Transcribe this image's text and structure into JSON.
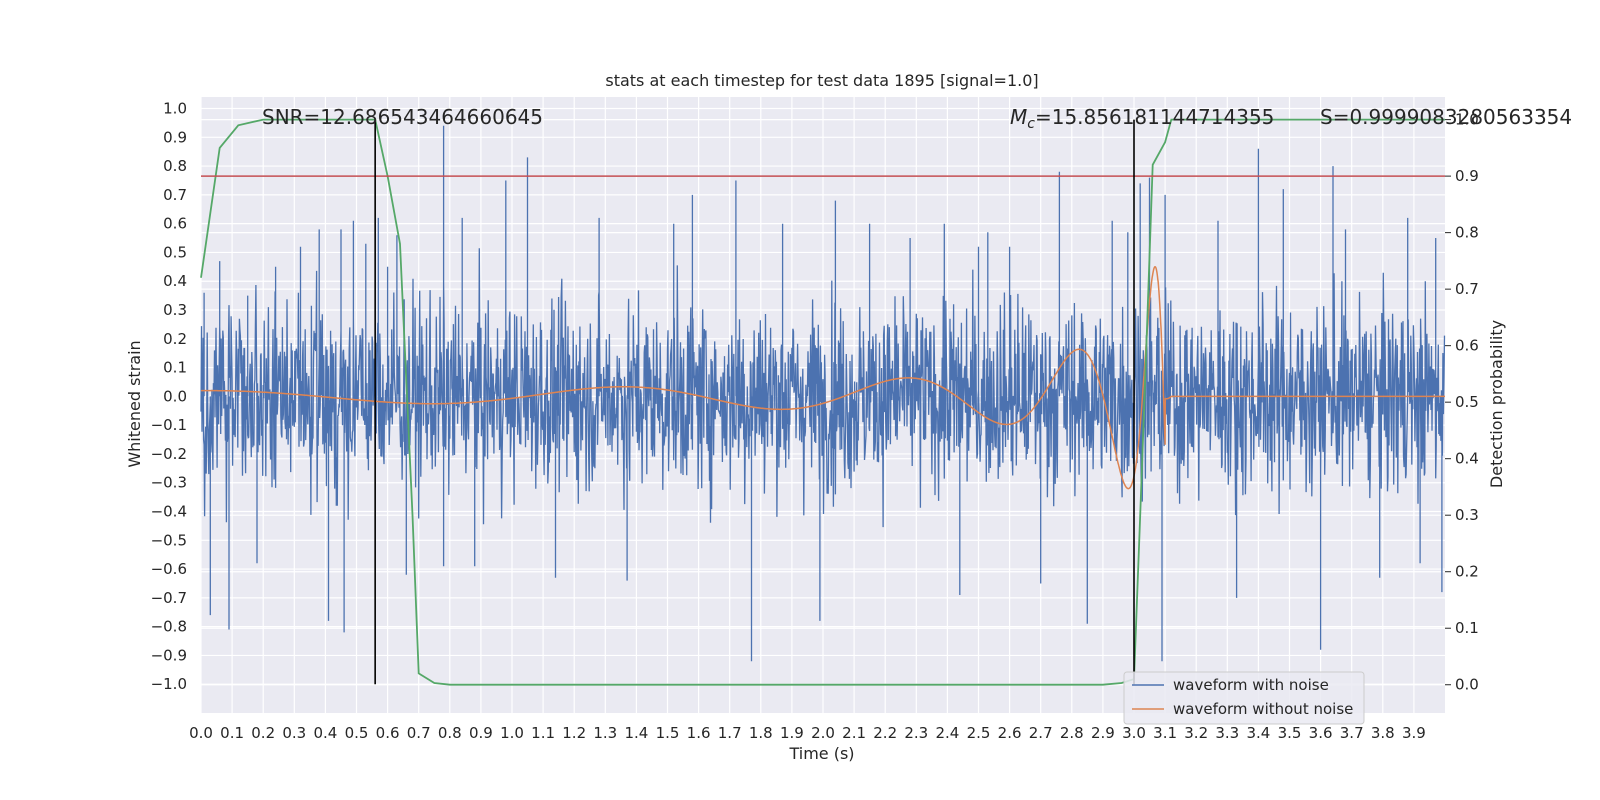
{
  "chart_data": {
    "type": "line",
    "title": "stats at each timestep for test data 1895 [signal=1.0]",
    "xlabel": "Time (s)",
    "ylabel": "Whitened strain",
    "y2label": "Detection probability",
    "xlim": [
      0.0,
      4.0
    ],
    "ylim": [
      -1.1,
      1.04
    ],
    "y2lim": [
      -0.05,
      1.04
    ],
    "xticks": [
      0.0,
      0.1,
      0.2,
      0.3,
      0.4,
      0.5,
      0.6,
      0.7,
      0.8,
      0.9,
      1.0,
      1.1,
      1.2,
      1.3,
      1.4,
      1.5,
      1.6,
      1.7,
      1.8,
      1.9,
      2.0,
      2.1,
      2.2,
      2.3,
      2.4,
      2.5,
      2.6,
      2.7,
      2.8,
      2.9,
      3.0,
      3.1,
      3.2,
      3.3,
      3.4,
      3.5,
      3.6,
      3.7,
      3.8,
      3.9
    ],
    "xtick_labels": [
      "0.0",
      "0.1",
      "0.2",
      "0.3",
      "0.4",
      "0.5",
      "0.6",
      "0.7",
      "0.8",
      "0.9",
      "1.0",
      "1.1",
      "1.2",
      "1.3",
      "1.4",
      "1.5",
      "1.6",
      "1.7",
      "1.8",
      "1.9",
      "2.0",
      "2.1",
      "2.2",
      "2.3",
      "2.4",
      "2.5",
      "2.6",
      "2.7",
      "2.8",
      "2.9",
      "3.0",
      "3.1",
      "3.2",
      "3.3",
      "3.4",
      "3.5",
      "3.6",
      "3.7",
      "3.8",
      "3.9"
    ],
    "yticks": [
      1.0,
      0.9,
      0.8,
      0.7,
      0.6,
      0.5,
      0.4,
      0.3,
      0.2,
      0.1,
      0.0,
      -0.1,
      -0.2,
      -0.3,
      -0.4,
      -0.5,
      -0.6,
      -0.7,
      -0.8,
      -0.9,
      -1.0
    ],
    "ytick_labels": [
      "1.0",
      "0.9",
      "0.8",
      "0.7",
      "0.6",
      "0.5",
      "0.4",
      "0.3",
      "0.2",
      "0.1",
      "0.0",
      "−0.1",
      "−0.2",
      "−0.3",
      "−0.4",
      "−0.5",
      "−0.6",
      "−0.7",
      "−0.8",
      "−0.9",
      "−1.0"
    ],
    "y2ticks": [
      0.0,
      0.1,
      0.2,
      0.3,
      0.4,
      0.5,
      0.6,
      0.7,
      0.8,
      0.9,
      1.0
    ],
    "y2tick_labels": [
      "0.0",
      "0.1",
      "0.2",
      "0.3",
      "0.4",
      "0.5",
      "0.6",
      "0.7",
      "0.8",
      "0.9",
      "1.0"
    ],
    "grid": true,
    "legend_position": "bottom-right",
    "annotations": {
      "snr": "SNR=12.686543464660645",
      "mc": "=15.856181144714355",
      "mc_symbol": "M",
      "mc_sub": "c",
      "s": "S=0.9999083280563354"
    },
    "vlines": [
      0.56,
      3.0
    ],
    "threshold": 0.9,
    "series": [
      {
        "name": "waveform with noise",
        "color": "#4c72b0",
        "noise_sigma": 0.16,
        "spikes": [
          [
            0.01,
            0.36
          ],
          [
            0.03,
            -0.76
          ],
          [
            0.06,
            0.47
          ],
          [
            0.09,
            -0.81
          ],
          [
            0.15,
            0.35
          ],
          [
            0.18,
            -0.58
          ],
          [
            0.24,
            0.45
          ],
          [
            0.32,
            0.52
          ],
          [
            0.38,
            0.58
          ],
          [
            0.41,
            -0.78
          ],
          [
            0.45,
            0.58
          ],
          [
            0.46,
            -0.82
          ],
          [
            0.49,
            0.61
          ],
          [
            0.53,
            0.53
          ],
          [
            0.57,
            0.62
          ],
          [
            0.6,
            0.45
          ],
          [
            0.63,
            0.56
          ],
          [
            0.66,
            -0.62
          ],
          [
            0.78,
            0.94
          ],
          [
            0.78,
            -0.59
          ],
          [
            0.84,
            0.62
          ],
          [
            0.88,
            -0.59
          ],
          [
            0.98,
            0.75
          ],
          [
            1.05,
            0.83
          ],
          [
            1.14,
            -0.63
          ],
          [
            1.28,
            0.62
          ],
          [
            1.37,
            -0.64
          ],
          [
            1.52,
            0.6
          ],
          [
            1.58,
            0.7
          ],
          [
            1.72,
            0.75
          ],
          [
            1.77,
            -0.92
          ],
          [
            1.87,
            0.6
          ],
          [
            1.99,
            -0.78
          ],
          [
            2.04,
            0.68
          ],
          [
            2.15,
            0.6
          ],
          [
            2.28,
            0.55
          ],
          [
            2.39,
            0.6
          ],
          [
            2.44,
            -0.69
          ],
          [
            2.5,
            0.52
          ],
          [
            2.53,
            0.57
          ],
          [
            2.6,
            0.52
          ],
          [
            2.7,
            -0.65
          ],
          [
            2.76,
            0.78
          ],
          [
            2.85,
            -0.79
          ],
          [
            2.93,
            0.61
          ],
          [
            2.98,
            0.57
          ],
          [
            3.02,
            0.74
          ],
          [
            3.05,
            0.76
          ],
          [
            3.09,
            -0.92
          ],
          [
            3.1,
            0.7
          ],
          [
            3.27,
            0.61
          ],
          [
            3.33,
            -0.7
          ],
          [
            3.4,
            0.86
          ],
          [
            3.48,
            0.72
          ],
          [
            3.6,
            -0.88
          ],
          [
            3.64,
            0.8
          ],
          [
            3.68,
            0.58
          ],
          [
            3.79,
            -0.63
          ],
          [
            3.88,
            0.62
          ],
          [
            3.92,
            -0.58
          ],
          [
            3.97,
            0.55
          ],
          [
            3.99,
            -0.68
          ]
        ]
      },
      {
        "name": "waveform without noise",
        "color": "#dd8452",
        "merger_time": 3.1,
        "peak_amplitude": 0.45
      },
      {
        "name": "",
        "color": "#55a868",
        "x": [
          0.0,
          0.06,
          0.12,
          0.2,
          0.5,
          0.56,
          0.6,
          0.64,
          0.68,
          0.7,
          0.75,
          0.8,
          1.0,
          2.0,
          2.9,
          2.96,
          3.0,
          3.02,
          3.04,
          3.06,
          3.1,
          3.12,
          3.2,
          4.0
        ],
        "values": [
          0.72,
          0.95,
          0.99,
          1.0,
          1.0,
          1.0,
          0.9,
          0.78,
          0.3,
          0.02,
          0.003,
          0.0,
          0.0,
          0.0,
          0.0,
          0.003,
          0.01,
          0.3,
          0.6,
          0.92,
          0.96,
          1.0,
          1.0,
          1.0
        ]
      }
    ]
  }
}
